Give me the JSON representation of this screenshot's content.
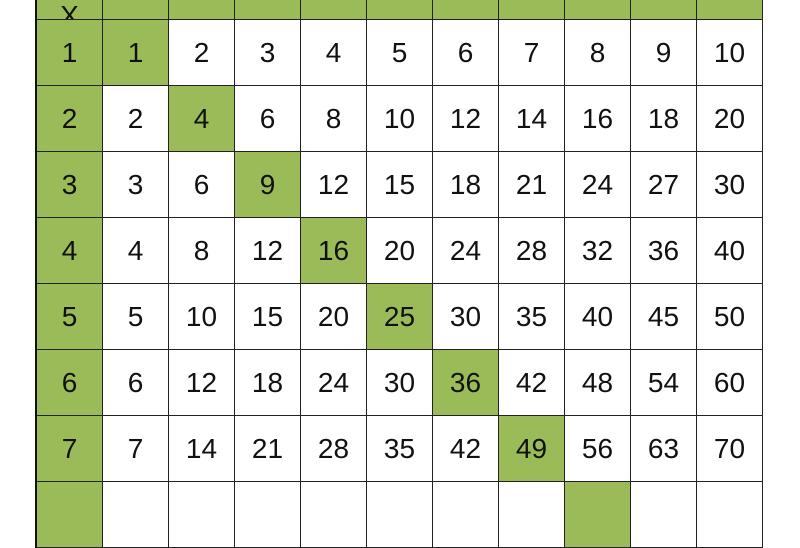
{
  "table": {
    "corner_label": "X",
    "highlight_color": "#9bbb59",
    "rows": [
      {
        "header": "1",
        "values": [
          "1",
          "2",
          "3",
          "4",
          "5",
          "6",
          "7",
          "8",
          "9",
          "10"
        ]
      },
      {
        "header": "2",
        "values": [
          "2",
          "4",
          "6",
          "8",
          "10",
          "12",
          "14",
          "16",
          "18",
          "20"
        ]
      },
      {
        "header": "3",
        "values": [
          "3",
          "6",
          "9",
          "12",
          "15",
          "18",
          "21",
          "24",
          "27",
          "30"
        ]
      },
      {
        "header": "4",
        "values": [
          "4",
          "8",
          "12",
          "16",
          "20",
          "24",
          "28",
          "32",
          "36",
          "40"
        ]
      },
      {
        "header": "5",
        "values": [
          "5",
          "10",
          "15",
          "20",
          "25",
          "30",
          "35",
          "40",
          "45",
          "50"
        ]
      },
      {
        "header": "6",
        "values": [
          "6",
          "12",
          "18",
          "24",
          "30",
          "36",
          "42",
          "48",
          "54",
          "60"
        ]
      },
      {
        "header": "7",
        "values": [
          "7",
          "14",
          "21",
          "28",
          "35",
          "42",
          "49",
          "56",
          "63",
          "70"
        ]
      }
    ]
  }
}
